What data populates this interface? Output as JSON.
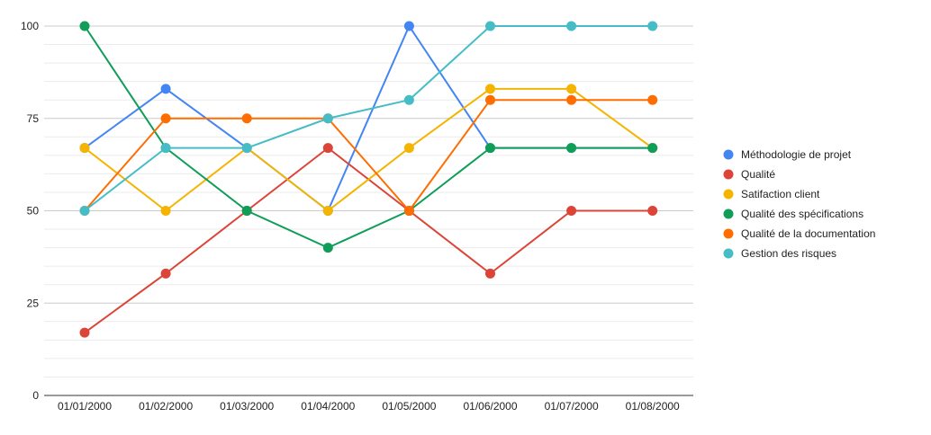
{
  "chart_data": {
    "type": "line",
    "title": "",
    "xlabel": "",
    "ylabel": "",
    "categories": [
      "01/01/2000",
      "01/02/2000",
      "01/03/2000",
      "01/04/2000",
      "01/05/2000",
      "01/06/2000",
      "01/07/2000",
      "01/08/2000"
    ],
    "ylim": [
      0,
      100
    ],
    "yticks": [
      0,
      25,
      50,
      75,
      100
    ],
    "grid": true,
    "legend_position": "right",
    "series": [
      {
        "name": "Méthodologie de projet",
        "color": "#4285f4",
        "values": [
          67,
          83,
          67,
          50,
          100,
          67,
          67,
          67
        ]
      },
      {
        "name": "Qualité",
        "color": "#db4437",
        "values": [
          17,
          33,
          50,
          67,
          50,
          33,
          50,
          50
        ]
      },
      {
        "name": "Satifaction client",
        "color": "#f4b400",
        "values": [
          67,
          50,
          67,
          50,
          67,
          83,
          83,
          67
        ]
      },
      {
        "name": "Qualité des spécifications",
        "color": "#0f9d58",
        "values": [
          100,
          67,
          50,
          40,
          50,
          67,
          67,
          67
        ]
      },
      {
        "name": "Qualité de la documentation",
        "color": "#ff6d01",
        "values": [
          50,
          75,
          75,
          75,
          50,
          80,
          80,
          80
        ]
      },
      {
        "name": "Gestion des risques",
        "color": "#46bdc6",
        "values": [
          50,
          67,
          67,
          75,
          80,
          100,
          100,
          100
        ]
      }
    ]
  }
}
